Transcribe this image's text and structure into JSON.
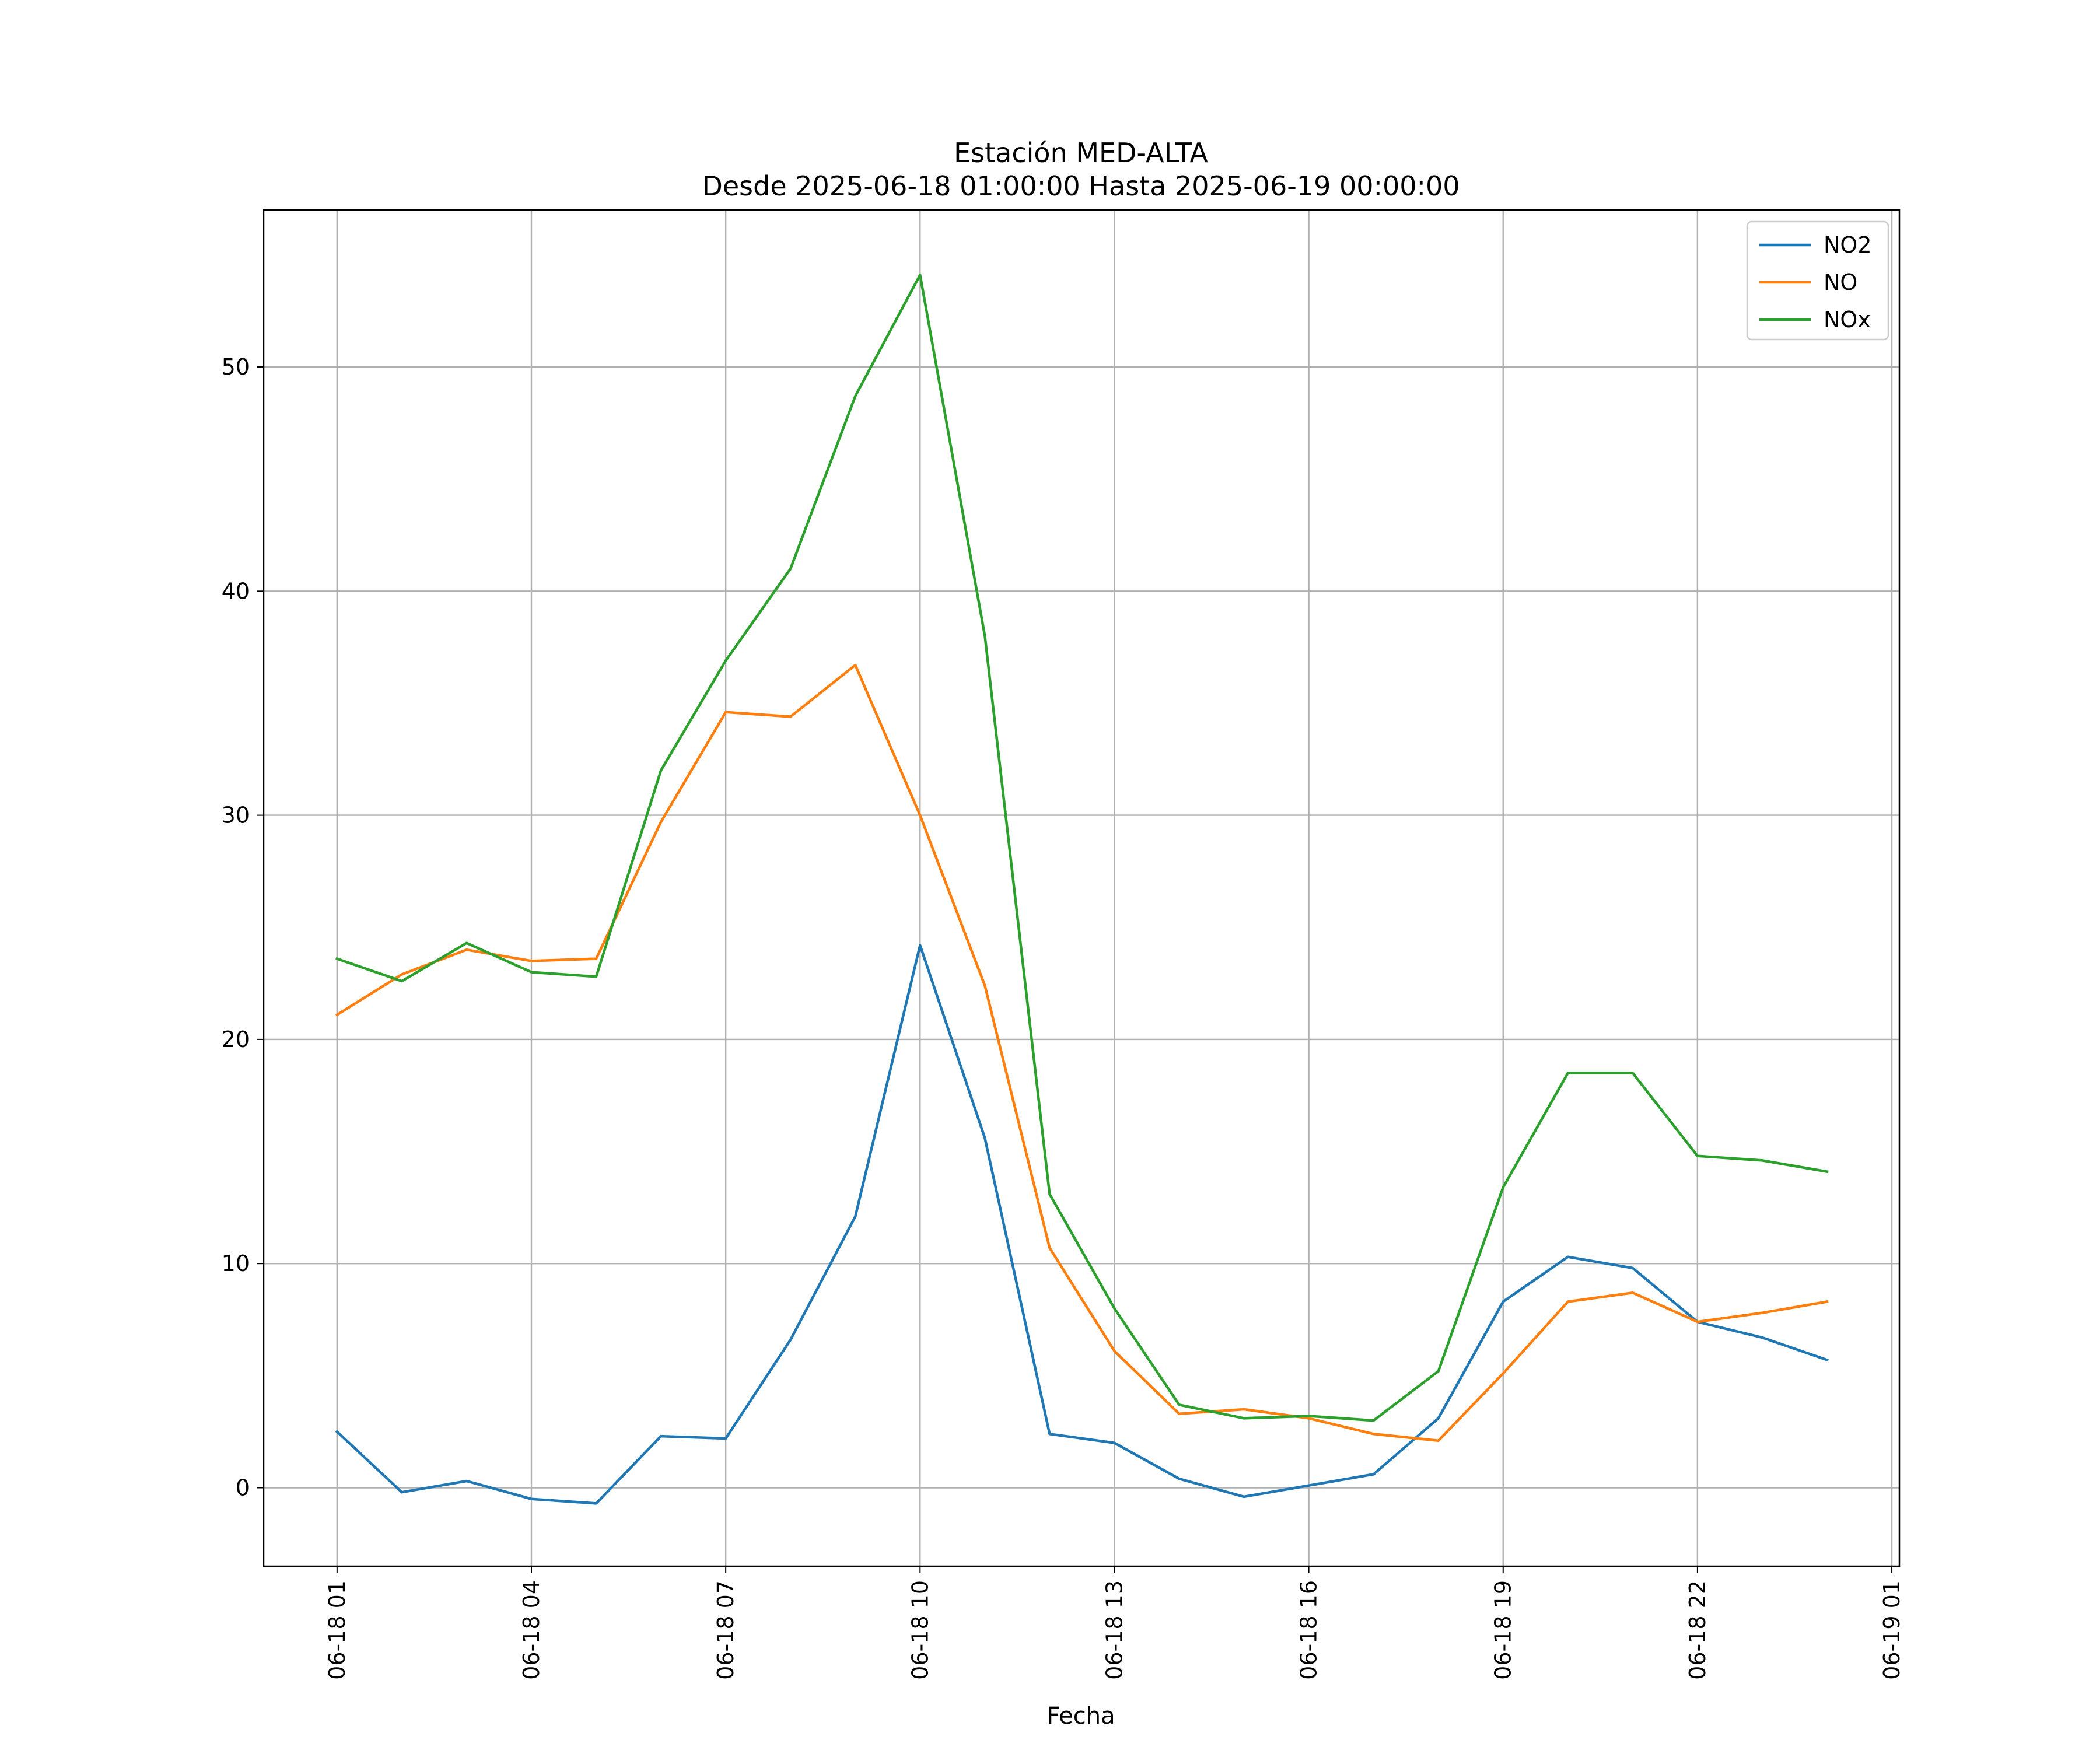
{
  "chart_data": {
    "type": "line",
    "title": "Estación MED-ALTA",
    "subtitle": "Desde 2025-06-18 01:00:00 Hasta 2025-06-19 00:00:00",
    "xlabel": "Fecha",
    "ylabel": "",
    "x": [
      "2025-06-18 01:00",
      "2025-06-18 02:00",
      "2025-06-18 03:00",
      "2025-06-18 04:00",
      "2025-06-18 05:00",
      "2025-06-18 06:00",
      "2025-06-18 07:00",
      "2025-06-18 08:00",
      "2025-06-18 09:00",
      "2025-06-18 10:00",
      "2025-06-18 11:00",
      "2025-06-18 12:00",
      "2025-06-18 13:00",
      "2025-06-18 14:00",
      "2025-06-18 15:00",
      "2025-06-18 16:00",
      "2025-06-18 17:00",
      "2025-06-18 18:00",
      "2025-06-18 19:00",
      "2025-06-18 20:00",
      "2025-06-18 21:00",
      "2025-06-18 22:00",
      "2025-06-18 23:00",
      "2025-06-19 00:00"
    ],
    "series": [
      {
        "name": "NO2",
        "color": "#1f77b4",
        "values": [
          2.5,
          -0.2,
          0.3,
          -0.5,
          -0.7,
          2.3,
          2.2,
          6.6,
          12.1,
          24.2,
          15.6,
          2.4,
          2.0,
          0.4,
          -0.4,
          0.1,
          0.6,
          3.1,
          8.3,
          10.3,
          9.8,
          7.4,
          6.7,
          5.7
        ]
      },
      {
        "name": "NO",
        "color": "#ff7f0e",
        "values": [
          21.1,
          22.9,
          24.0,
          23.5,
          23.6,
          29.7,
          34.6,
          34.4,
          36.7,
          30.0,
          22.4,
          10.7,
          6.1,
          3.3,
          3.5,
          3.1,
          2.4,
          2.1,
          5.1,
          8.3,
          8.7,
          7.4,
          7.8,
          8.3
        ]
      },
      {
        "name": "NOx",
        "color": "#2ca02c",
        "values": [
          23.6,
          22.6,
          24.3,
          23.0,
          22.8,
          32.0,
          36.9,
          41.0,
          48.7,
          54.1,
          38.0,
          13.1,
          8.0,
          3.7,
          3.1,
          3.2,
          3.0,
          5.2,
          13.4,
          18.5,
          18.5,
          14.8,
          14.6,
          14.1
        ]
      }
    ],
    "xticks": [
      "06-18 01",
      "06-18 04",
      "06-18 07",
      "06-18 10",
      "06-18 13",
      "06-18 16",
      "06-18 19",
      "06-18 22",
      "06-19 01"
    ],
    "yticks": [
      "0",
      "10",
      "20",
      "30",
      "40",
      "50"
    ],
    "ylim": [
      -3.5,
      57
    ],
    "xlim": [
      "2025-06-17 23:52",
      "2025-06-19 01:07"
    ],
    "grid": true,
    "legend_position": "top-right"
  }
}
